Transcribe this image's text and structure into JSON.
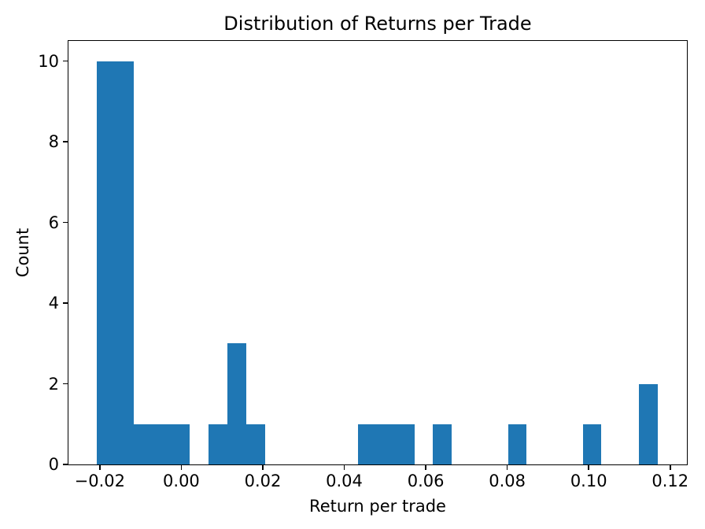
{
  "chart_data": {
    "type": "bar",
    "subtype": "histogram",
    "title": "Distribution of Returns per Trade",
    "xlabel": "Return per trade",
    "ylabel": "Count",
    "bar_color": "#1f77b4",
    "background_color": "#ffffff",
    "axis_color": "#000000",
    "grid": false,
    "legend_position": "none",
    "bin_start": -0.02083,
    "bin_width": 0.004591,
    "bin_counts": [
      10,
      10,
      1,
      1,
      1,
      0,
      1,
      3,
      1,
      0,
      0,
      0,
      0,
      0,
      1,
      1,
      1,
      0,
      1,
      0,
      0,
      0,
      1,
      0,
      0,
      0,
      1,
      0,
      0,
      2
    ],
    "xlim": [
      -0.0277,
      0.1241
    ],
    "ylim": [
      0,
      10.5
    ],
    "xticks": [
      -0.02,
      0.0,
      0.02,
      0.04,
      0.06,
      0.08,
      0.1,
      0.12
    ],
    "xtick_labels": [
      "−0.02",
      "0.00",
      "0.02",
      "0.04",
      "0.06",
      "0.08",
      "0.10",
      "0.12"
    ],
    "yticks": [
      0,
      2,
      4,
      6,
      8,
      10
    ],
    "ytick_labels": [
      "0",
      "2",
      "4",
      "6",
      "8",
      "10"
    ]
  }
}
